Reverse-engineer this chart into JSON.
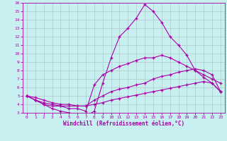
{
  "xlabel": "Windchill (Refroidissement éolien,°C)",
  "bg_color": "#c8f0f0",
  "grid_color": "#b0c8c8",
  "line_color": "#aa00aa",
  "xlim": [
    -0.5,
    23.5
  ],
  "ylim": [
    3,
    16
  ],
  "xticks": [
    0,
    1,
    2,
    3,
    4,
    5,
    6,
    7,
    8,
    9,
    10,
    11,
    12,
    13,
    14,
    15,
    16,
    17,
    18,
    19,
    20,
    21,
    22,
    23
  ],
  "yticks": [
    3,
    4,
    5,
    6,
    7,
    8,
    9,
    10,
    11,
    12,
    13,
    14,
    15,
    16
  ],
  "curves": [
    {
      "x": [
        0,
        1,
        2,
        3,
        4,
        5,
        6,
        7,
        8,
        9,
        10,
        11,
        12,
        13,
        14,
        15,
        16,
        17,
        18,
        19,
        20,
        21,
        22,
        23
      ],
      "y": [
        5.0,
        4.5,
        4.0,
        3.5,
        3.2,
        3.0,
        2.8,
        2.6,
        3.2,
        6.5,
        9.5,
        12.0,
        13.0,
        14.2,
        15.8,
        15.0,
        13.7,
        12.0,
        11.0,
        9.8,
        8.0,
        7.2,
        6.5,
        5.5
      ]
    },
    {
      "x": [
        0,
        1,
        2,
        3,
        4,
        5,
        6,
        7,
        8,
        9,
        10,
        11,
        12,
        13,
        14,
        15,
        16,
        17,
        18,
        19,
        20,
        21,
        22,
        23
      ],
      "y": [
        5.0,
        4.5,
        4.0,
        3.8,
        3.8,
        3.5,
        3.5,
        3.2,
        6.3,
        7.5,
        8.0,
        8.5,
        8.8,
        9.2,
        9.5,
        9.5,
        9.8,
        9.5,
        9.0,
        8.5,
        8.0,
        7.5,
        7.0,
        6.5
      ]
    },
    {
      "x": [
        0,
        1,
        2,
        3,
        4,
        5,
        6,
        7,
        8,
        9,
        10,
        11,
        12,
        13,
        14,
        15,
        16,
        17,
        18,
        19,
        20,
        21,
        22,
        23
      ],
      "y": [
        5.0,
        4.5,
        4.2,
        4.0,
        3.8,
        3.8,
        3.8,
        3.8,
        4.5,
        5.0,
        5.5,
        5.8,
        6.0,
        6.3,
        6.5,
        7.0,
        7.3,
        7.5,
        7.8,
        8.0,
        8.2,
        8.0,
        7.5,
        5.5
      ]
    },
    {
      "x": [
        0,
        1,
        2,
        3,
        4,
        5,
        6,
        7,
        8,
        9,
        10,
        11,
        12,
        13,
        14,
        15,
        16,
        17,
        18,
        19,
        20,
        21,
        22,
        23
      ],
      "y": [
        5.0,
        4.8,
        4.5,
        4.2,
        4.0,
        4.0,
        3.8,
        3.8,
        4.0,
        4.2,
        4.5,
        4.7,
        4.9,
        5.1,
        5.3,
        5.5,
        5.7,
        5.9,
        6.1,
        6.3,
        6.5,
        6.7,
        6.5,
        5.5
      ]
    }
  ]
}
